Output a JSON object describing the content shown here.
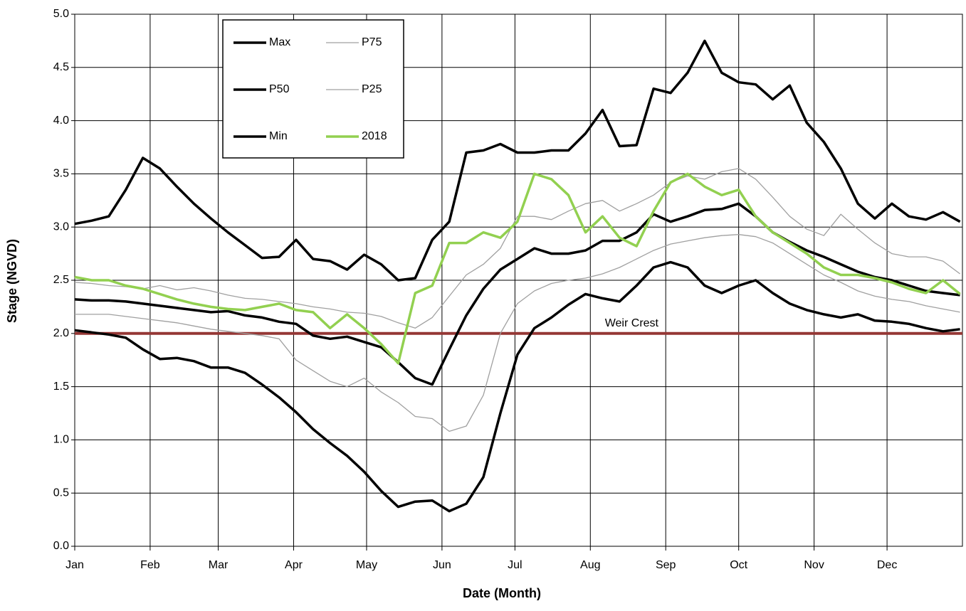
{
  "chart_data": {
    "type": "line",
    "xlabel": "Date (Month)",
    "ylabel": "Stage (NGVD)",
    "xlim": [
      0,
      365
    ],
    "xticks": [
      {
        "value": 0,
        "label": "Jan"
      },
      {
        "value": 31,
        "label": "Feb"
      },
      {
        "value": 59,
        "label": "Mar"
      },
      {
        "value": 90,
        "label": "Apr"
      },
      {
        "value": 120,
        "label": "May"
      },
      {
        "value": 151,
        "label": "Jun"
      },
      {
        "value": 181,
        "label": "Jul"
      },
      {
        "value": 212,
        "label": "Aug"
      },
      {
        "value": 243,
        "label": "Sep"
      },
      {
        "value": 273,
        "label": "Oct"
      },
      {
        "value": 304,
        "label": "Nov"
      },
      {
        "value": 334,
        "label": "Dec"
      }
    ],
    "ylim": [
      0,
      5
    ],
    "yticks": [
      {
        "value": 0,
        "label": "0.0"
      },
      {
        "value": 0.5,
        "label": "0.5"
      },
      {
        "value": 1,
        "label": "1.0"
      },
      {
        "value": 1.5,
        "label": "1.5"
      },
      {
        "value": 2,
        "label": "2.0"
      },
      {
        "value": 2.5,
        "label": "2.5"
      },
      {
        "value": 3,
        "label": "3.0"
      },
      {
        "value": 3.5,
        "label": "3.5"
      },
      {
        "value": 4,
        "label": "4.0"
      },
      {
        "value": 4.5,
        "label": "4.5"
      },
      {
        "value": 5,
        "label": "5.0"
      }
    ],
    "grid": true,
    "x": [
      0,
      7,
      14,
      21,
      28,
      35,
      42,
      49,
      56,
      63,
      70,
      77,
      84,
      91,
      98,
      105,
      112,
      119,
      126,
      133,
      140,
      147,
      154,
      161,
      168,
      175,
      182,
      189,
      196,
      203,
      210,
      217,
      224,
      231,
      238,
      245,
      252,
      259,
      266,
      273,
      280,
      287,
      294,
      301,
      308,
      315,
      322,
      329,
      336,
      343,
      350,
      357,
      364
    ],
    "series": [
      {
        "name": "Max",
        "color": "#000000",
        "linewidth": 3.5,
        "values": [
          3.03,
          3.06,
          3.1,
          3.35,
          3.65,
          3.55,
          3.38,
          3.22,
          3.08,
          2.95,
          2.83,
          2.71,
          2.72,
          2.88,
          2.7,
          2.68,
          2.6,
          2.74,
          2.65,
          2.5,
          2.52,
          2.88,
          3.05,
          3.7,
          3.72,
          3.78,
          3.7,
          3.7,
          3.72,
          3.72,
          3.88,
          4.1,
          3.76,
          3.77,
          4.3,
          4.26,
          4.45,
          4.75,
          4.45,
          4.36,
          4.34,
          4.2,
          4.33,
          3.98,
          3.8,
          3.55,
          3.22,
          3.08,
          3.22,
          3.1,
          3.07,
          3.14,
          3.05
        ]
      },
      {
        "name": "P75",
        "color": "#a0a0a0",
        "linewidth": 1.3,
        "values": [
          2.48,
          2.47,
          2.45,
          2.44,
          2.42,
          2.45,
          2.41,
          2.43,
          2.4,
          2.36,
          2.33,
          2.32,
          2.3,
          2.28,
          2.25,
          2.23,
          2.2,
          2.19,
          2.16,
          2.1,
          2.05,
          2.15,
          2.35,
          2.55,
          2.65,
          2.8,
          3.1,
          3.1,
          3.07,
          3.15,
          3.22,
          3.25,
          3.15,
          3.22,
          3.3,
          3.42,
          3.48,
          3.45,
          3.52,
          3.55,
          3.45,
          3.28,
          3.1,
          2.98,
          2.92,
          3.12,
          2.98,
          2.85,
          2.75,
          2.72,
          2.72,
          2.68,
          2.56
        ]
      },
      {
        "name": "P50",
        "color": "#000000",
        "linewidth": 3.5,
        "values": [
          2.32,
          2.31,
          2.31,
          2.3,
          2.28,
          2.26,
          2.24,
          2.22,
          2.2,
          2.21,
          2.17,
          2.15,
          2.11,
          2.09,
          1.98,
          1.95,
          1.97,
          1.92,
          1.87,
          1.73,
          1.58,
          1.52,
          1.85,
          2.17,
          2.42,
          2.6,
          2.7,
          2.8,
          2.75,
          2.75,
          2.78,
          2.87,
          2.87,
          2.95,
          3.12,
          3.05,
          3.1,
          3.16,
          3.17,
          3.22,
          3.1,
          2.95,
          2.86,
          2.78,
          2.72,
          2.65,
          2.58,
          2.53,
          2.5,
          2.45,
          2.4,
          2.38,
          2.36
        ]
      },
      {
        "name": "P25",
        "color": "#a0a0a0",
        "linewidth": 1.3,
        "values": [
          2.18,
          2.18,
          2.18,
          2.16,
          2.14,
          2.12,
          2.1,
          2.07,
          2.04,
          2.02,
          2.0,
          1.98,
          1.95,
          1.75,
          1.65,
          1.55,
          1.5,
          1.58,
          1.45,
          1.35,
          1.22,
          1.2,
          1.08,
          1.13,
          1.42,
          2.0,
          2.28,
          2.4,
          2.47,
          2.5,
          2.52,
          2.56,
          2.62,
          2.7,
          2.78,
          2.84,
          2.87,
          2.9,
          2.92,
          2.93,
          2.91,
          2.85,
          2.75,
          2.65,
          2.55,
          2.48,
          2.4,
          2.35,
          2.32,
          2.3,
          2.26,
          2.23,
          2.2
        ]
      },
      {
        "name": "Min",
        "color": "#000000",
        "linewidth": 3.5,
        "values": [
          2.03,
          2.01,
          1.99,
          1.96,
          1.85,
          1.76,
          1.77,
          1.74,
          1.68,
          1.68,
          1.63,
          1.52,
          1.4,
          1.26,
          1.1,
          0.97,
          0.85,
          0.7,
          0.52,
          0.37,
          0.42,
          0.43,
          0.33,
          0.4,
          0.65,
          1.25,
          1.8,
          2.05,
          2.15,
          2.27,
          2.37,
          2.33,
          2.3,
          2.45,
          2.62,
          2.67,
          2.62,
          2.45,
          2.38,
          2.45,
          2.5,
          2.38,
          2.28,
          2.22,
          2.18,
          2.15,
          2.18,
          2.12,
          2.11,
          2.09,
          2.05,
          2.02,
          2.04
        ]
      },
      {
        "name": "2018",
        "color": "#92d050",
        "linewidth": 3.5,
        "values": [
          2.53,
          2.5,
          2.5,
          2.45,
          2.42,
          2.37,
          2.32,
          2.28,
          2.25,
          2.23,
          2.22,
          2.25,
          2.28,
          2.22,
          2.2,
          2.05,
          2.18,
          2.05,
          1.9,
          1.72,
          2.38,
          2.45,
          2.85,
          2.85,
          2.95,
          2.9,
          3.05,
          3.5,
          3.45,
          3.3,
          2.95,
          3.1,
          2.9,
          2.82,
          3.15,
          3.42,
          3.5,
          3.38,
          3.3,
          3.35,
          3.1,
          2.95,
          2.85,
          2.75,
          2.62,
          2.55,
          2.55,
          2.52,
          2.48,
          2.42,
          2.38,
          2.5,
          2.37
        ]
      }
    ],
    "reference_line": {
      "label": "Weir Crest",
      "value": 2.0,
      "color": "#953735",
      "x": 229
    }
  }
}
